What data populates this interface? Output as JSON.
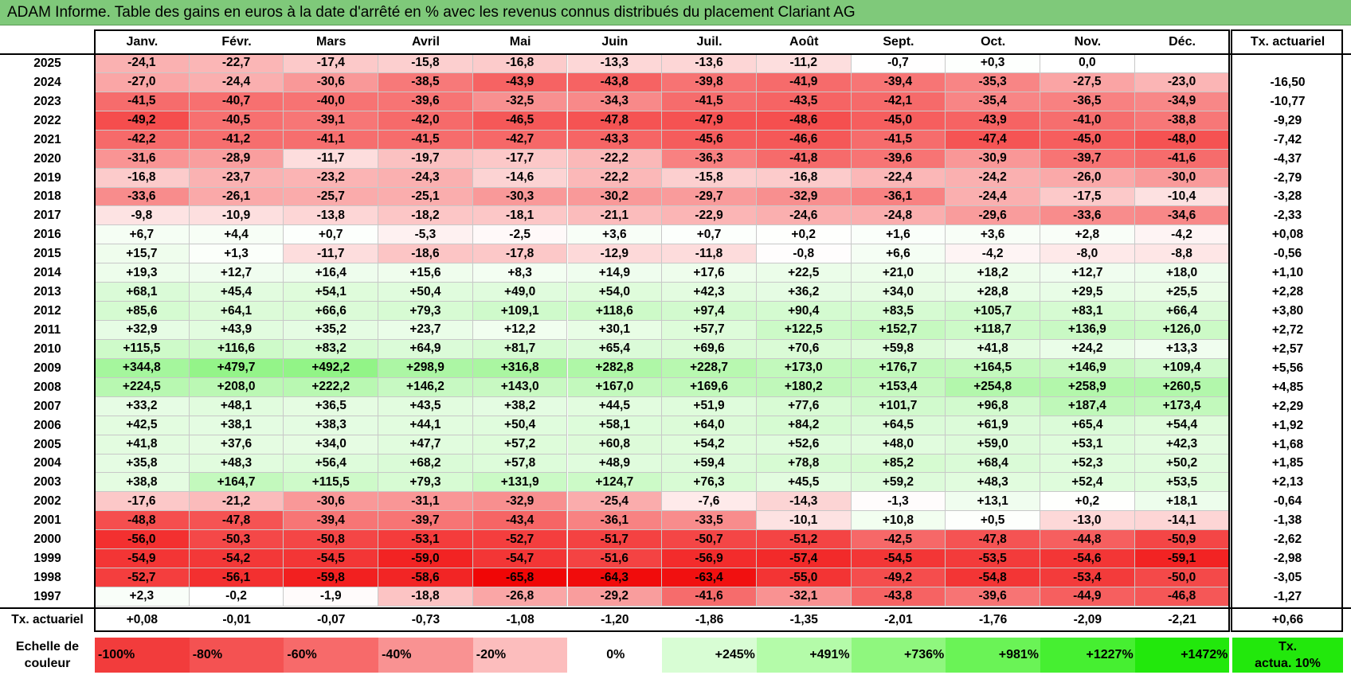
{
  "title": "ADAM Informe. Table des gains en euros à la date d'arrêté en % avec les revenus connus distribués du placement Clariant AG",
  "chart_data": {
    "type": "heatmap",
    "months": [
      "Janv.",
      "Févr.",
      "Mars",
      "Avril",
      "Mai",
      "Juin",
      "Juil.",
      "Août",
      "Sept.",
      "Oct.",
      "Nov.",
      "Déc."
    ],
    "right_header": "Tx. actuariel",
    "rows": [
      {
        "year": "2025",
        "values": [
          "-24,1",
          "-22,7",
          "-17,4",
          "-15,8",
          "-16,8",
          "-13,3",
          "-13,6",
          "-11,2",
          "-0,7",
          "+0,3",
          "0,0",
          ""
        ],
        "rate": ""
      },
      {
        "year": "2024",
        "values": [
          "-27,0",
          "-24,4",
          "-30,6",
          "-38,5",
          "-43,9",
          "-43,8",
          "-39,8",
          "-41,9",
          "-39,4",
          "-35,3",
          "-27,5",
          "-23,0"
        ],
        "rate": "-16,50"
      },
      {
        "year": "2023",
        "values": [
          "-41,5",
          "-40,7",
          "-40,0",
          "-39,6",
          "-32,5",
          "-34,3",
          "-41,5",
          "-43,5",
          "-42,1",
          "-35,4",
          "-36,5",
          "-34,9"
        ],
        "rate": "-10,77"
      },
      {
        "year": "2022",
        "values": [
          "-49,2",
          "-40,5",
          "-39,1",
          "-42,0",
          "-46,5",
          "-47,8",
          "-47,9",
          "-48,6",
          "-45,0",
          "-43,9",
          "-41,0",
          "-38,8"
        ],
        "rate": "-9,29"
      },
      {
        "year": "2021",
        "values": [
          "-42,2",
          "-41,2",
          "-41,1",
          "-41,5",
          "-42,7",
          "-43,3",
          "-45,6",
          "-46,6",
          "-41,5",
          "-47,4",
          "-45,0",
          "-48,0"
        ],
        "rate": "-7,42"
      },
      {
        "year": "2020",
        "values": [
          "-31,6",
          "-28,9",
          "-11,7",
          "-19,7",
          "-17,7",
          "-22,2",
          "-36,3",
          "-41,8",
          "-39,6",
          "-30,9",
          "-39,7",
          "-41,6"
        ],
        "rate": "-4,37"
      },
      {
        "year": "2019",
        "values": [
          "-16,8",
          "-23,7",
          "-23,2",
          "-24,3",
          "-14,6",
          "-22,2",
          "-15,8",
          "-16,8",
          "-22,4",
          "-24,2",
          "-26,0",
          "-30,0"
        ],
        "rate": "-2,79"
      },
      {
        "year": "2018",
        "values": [
          "-33,6",
          "-26,1",
          "-25,7",
          "-25,1",
          "-30,3",
          "-30,2",
          "-29,7",
          "-32,9",
          "-36,1",
          "-24,4",
          "-17,5",
          "-10,4"
        ],
        "rate": "-3,28"
      },
      {
        "year": "2017",
        "values": [
          "-9,8",
          "-10,9",
          "-13,8",
          "-18,2",
          "-18,1",
          "-21,1",
          "-22,9",
          "-24,6",
          "-24,8",
          "-29,6",
          "-33,6",
          "-34,6"
        ],
        "rate": "-2,33"
      },
      {
        "year": "2016",
        "values": [
          "+6,7",
          "+4,4",
          "+0,7",
          "-5,3",
          "-2,5",
          "+3,6",
          "+0,7",
          "+0,2",
          "+1,6",
          "+3,6",
          "+2,8",
          "-4,2"
        ],
        "rate": "+0,08"
      },
      {
        "year": "2015",
        "values": [
          "+15,7",
          "+1,3",
          "-11,7",
          "-18,6",
          "-17,8",
          "-12,9",
          "-11,8",
          "-0,8",
          "+6,6",
          "-4,2",
          "-8,0",
          "-8,8"
        ],
        "rate": "-0,56"
      },
      {
        "year": "2014",
        "values": [
          "+19,3",
          "+12,7",
          "+16,4",
          "+15,6",
          "+8,3",
          "+14,9",
          "+17,6",
          "+22,5",
          "+21,0",
          "+18,2",
          "+12,7",
          "+18,0"
        ],
        "rate": "+1,10"
      },
      {
        "year": "2013",
        "values": [
          "+68,1",
          "+45,4",
          "+54,1",
          "+50,4",
          "+49,0",
          "+54,0",
          "+42,3",
          "+36,2",
          "+34,0",
          "+28,8",
          "+29,5",
          "+25,5"
        ],
        "rate": "+2,28"
      },
      {
        "year": "2012",
        "values": [
          "+85,6",
          "+64,1",
          "+66,6",
          "+79,3",
          "+109,1",
          "+118,6",
          "+97,4",
          "+90,4",
          "+83,5",
          "+105,7",
          "+83,1",
          "+66,4"
        ],
        "rate": "+3,80"
      },
      {
        "year": "2011",
        "values": [
          "+32,9",
          "+43,9",
          "+35,2",
          "+23,7",
          "+12,2",
          "+30,1",
          "+57,7",
          "+122,5",
          "+152,7",
          "+118,7",
          "+136,9",
          "+126,0"
        ],
        "rate": "+2,72"
      },
      {
        "year": "2010",
        "values": [
          "+115,5",
          "+116,6",
          "+83,2",
          "+64,9",
          "+81,7",
          "+65,4",
          "+69,6",
          "+70,6",
          "+59,8",
          "+41,8",
          "+24,2",
          "+13,3"
        ],
        "rate": "+2,57"
      },
      {
        "year": "2009",
        "values": [
          "+344,8",
          "+479,7",
          "+492,2",
          "+298,9",
          "+316,8",
          "+282,8",
          "+228,7",
          "+173,0",
          "+176,7",
          "+164,5",
          "+146,9",
          "+109,4"
        ],
        "rate": "+5,56"
      },
      {
        "year": "2008",
        "values": [
          "+224,5",
          "+208,0",
          "+222,2",
          "+146,2",
          "+143,0",
          "+167,0",
          "+169,6",
          "+180,2",
          "+153,4",
          "+254,8",
          "+258,9",
          "+260,5"
        ],
        "rate": "+4,85"
      },
      {
        "year": "2007",
        "values": [
          "+33,2",
          "+48,1",
          "+36,5",
          "+43,5",
          "+38,2",
          "+44,5",
          "+51,9",
          "+77,6",
          "+101,7",
          "+96,8",
          "+187,4",
          "+173,4"
        ],
        "rate": "+2,29"
      },
      {
        "year": "2006",
        "values": [
          "+42,5",
          "+38,1",
          "+38,3",
          "+44,1",
          "+50,4",
          "+58,1",
          "+64,0",
          "+84,2",
          "+64,5",
          "+61,9",
          "+65,4",
          "+54,4"
        ],
        "rate": "+1,92"
      },
      {
        "year": "2005",
        "values": [
          "+41,8",
          "+37,6",
          "+34,0",
          "+47,7",
          "+57,2",
          "+60,8",
          "+54,2",
          "+52,6",
          "+48,0",
          "+59,0",
          "+53,1",
          "+42,3"
        ],
        "rate": "+1,68"
      },
      {
        "year": "2004",
        "values": [
          "+35,8",
          "+48,3",
          "+56,4",
          "+68,2",
          "+57,8",
          "+48,9",
          "+59,4",
          "+78,8",
          "+85,2",
          "+68,4",
          "+52,3",
          "+50,2"
        ],
        "rate": "+1,85"
      },
      {
        "year": "2003",
        "values": [
          "+38,8",
          "+164,7",
          "+115,5",
          "+79,3",
          "+131,9",
          "+124,7",
          "+76,3",
          "+45,5",
          "+59,2",
          "+48,3",
          "+52,4",
          "+53,5"
        ],
        "rate": "+2,13"
      },
      {
        "year": "2002",
        "values": [
          "-17,6",
          "-21,2",
          "-30,6",
          "-31,1",
          "-32,9",
          "-25,4",
          "-7,6",
          "-14,3",
          "-1,3",
          "+13,1",
          "+0,2",
          "+18,1"
        ],
        "rate": "-0,64"
      },
      {
        "year": "2001",
        "values": [
          "-48,8",
          "-47,8",
          "-39,4",
          "-39,7",
          "-43,4",
          "-36,1",
          "-33,5",
          "-10,1",
          "+10,8",
          "+0,5",
          "-13,0",
          "-14,1"
        ],
        "rate": "-1,38"
      },
      {
        "year": "2000",
        "values": [
          "-56,0",
          "-50,3",
          "-50,8",
          "-53,1",
          "-52,7",
          "-51,7",
          "-50,7",
          "-51,2",
          "-42,5",
          "-47,8",
          "-44,8",
          "-50,9"
        ],
        "rate": "-2,62"
      },
      {
        "year": "1999",
        "values": [
          "-54,9",
          "-54,2",
          "-54,5",
          "-59,0",
          "-54,7",
          "-51,6",
          "-56,9",
          "-57,4",
          "-54,5",
          "-53,5",
          "-54,6",
          "-59,1"
        ],
        "rate": "-2,98"
      },
      {
        "year": "1998",
        "values": [
          "-52,7",
          "-56,1",
          "-59,8",
          "-58,6",
          "-65,8",
          "-64,3",
          "-63,4",
          "-55,0",
          "-49,2",
          "-54,8",
          "-53,4",
          "-50,0"
        ],
        "rate": "-3,05"
      },
      {
        "year": "1997",
        "values": [
          "+2,3",
          "-0,2",
          "-1,9",
          "-18,8",
          "-26,8",
          "-29,2",
          "-41,6",
          "-32,1",
          "-43,8",
          "-39,6",
          "-44,9",
          "-46,8"
        ],
        "rate": "-1,27"
      }
    ],
    "footer": {
      "label": "Tx. actuariel",
      "values": [
        "+0,08",
        "-0,01",
        "-0,07",
        "-0,73",
        "-1,08",
        "-1,20",
        "-1,86",
        "-1,35",
        "-2,01",
        "-1,76",
        "-2,09",
        "-2,21"
      ],
      "total": "+0,66"
    },
    "legend": {
      "label_line1": "Echelle de",
      "label_line2": "couleur",
      "items": [
        {
          "text": "-100%",
          "color": "#f23c3c"
        },
        {
          "text": "-80%",
          "color": "#f45252"
        },
        {
          "text": "-60%",
          "color": "#f76a6a"
        },
        {
          "text": "-40%",
          "color": "#f99292"
        },
        {
          "text": "-20%",
          "color": "#fcbdbd"
        },
        {
          "text": "0%",
          "color": "#ffffff"
        },
        {
          "text": "+245%",
          "color": "#d8fdd4"
        },
        {
          "text": "+491%",
          "color": "#b4fba9"
        },
        {
          "text": "+736%",
          "color": "#8ff77e"
        },
        {
          "text": "+981%",
          "color": "#6af356"
        },
        {
          "text": "+1227%",
          "color": "#46ef31"
        },
        {
          "text": "+1472%",
          "color": "#22e80c"
        }
      ],
      "tx_label_line1": "Tx.",
      "tx_label_line2": "actua. 10%",
      "tx_color": "#22e80c"
    },
    "colors": {
      "negative_max": "#f00000",
      "positive_max": "#22e80c",
      "zero": "#ffffff",
      "title_bar": "#7fc97a"
    }
  }
}
